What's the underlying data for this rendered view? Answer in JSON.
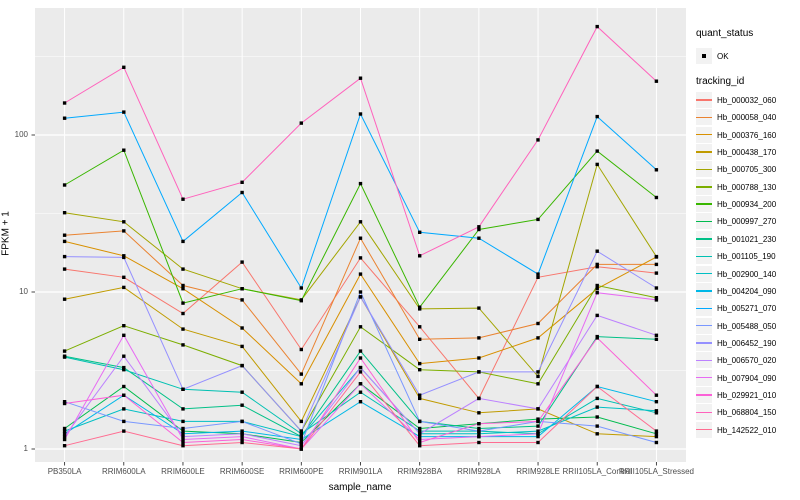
{
  "figure": {
    "xlabel": "sample_name",
    "ylabel": "FPKM + 1"
  },
  "legend": {
    "quant_status_title": "quant_status",
    "quant_ok_label": "OK",
    "tracking_id_title": "tracking_id"
  },
  "chart_data": {
    "type": "line",
    "title": "",
    "xlabel": "sample_name",
    "ylabel": "FPKM + 1",
    "y_scale": "log10",
    "y_ticks": [
      1,
      10,
      100
    ],
    "ylim": [
      0.95,
      560
    ],
    "grid": true,
    "legend_position": "right",
    "panel_color": "#EBEBEB",
    "point_color": "#000000",
    "point_legend_label": "OK",
    "categories": [
      "PB350LA",
      "RRIM600LA",
      "RRIM600LE",
      "RRIM600SE",
      "RRIM600PE",
      "RRIM901LA",
      "RRIM928BA",
      "RRIM928LA",
      "RRIM928LE",
      "RRII105LA_Control",
      "RRII105LA_Stressed"
    ],
    "series": [
      {
        "name": "Hb_000032_060",
        "color": "#F8766D",
        "values": [
          14,
          12.4,
          7.3,
          15.5,
          4.3,
          16.5,
          6.0,
          2.1,
          12.4,
          14.5,
          13.2
        ]
      },
      {
        "name": "Hb_000058_040",
        "color": "#EA8331",
        "values": [
          23,
          24.5,
          11,
          8.9,
          3.0,
          22,
          5.0,
          5.1,
          6.3,
          15,
          15
        ]
      },
      {
        "name": "Hb_000376_160",
        "color": "#D89000",
        "values": [
          21,
          17,
          10.5,
          5.9,
          2.6,
          13,
          3.5,
          3.8,
          5.1,
          10.5,
          16.7
        ]
      },
      {
        "name": "Hb_000438_170",
        "color": "#C09B00",
        "values": [
          9,
          10.7,
          5.8,
          4.5,
          1.5,
          9.3,
          2.1,
          1.7,
          1.8,
          1.25,
          1.2
        ]
      },
      {
        "name": "Hb_000705_300",
        "color": "#A3A500",
        "values": [
          32,
          28,
          14,
          10.5,
          8.9,
          28,
          7.8,
          7.9,
          2.9,
          65,
          16.8
        ]
      },
      {
        "name": "Hb_000788_130",
        "color": "#7CAE00",
        "values": [
          4.2,
          6.1,
          4.6,
          3.4,
          1.3,
          6.0,
          3.2,
          3.1,
          2.6,
          11,
          9.2
        ]
      },
      {
        "name": "Hb_000934_200",
        "color": "#39B600",
        "values": [
          48,
          80,
          8.5,
          10.5,
          8.8,
          49,
          8.0,
          25,
          29,
          79,
          40
        ]
      },
      {
        "name": "Hb_000997_270",
        "color": "#00BB4E",
        "values": [
          1.35,
          2.5,
          1.3,
          1.25,
          1.1,
          2.6,
          1.35,
          1.45,
          1.55,
          1.6,
          1.25
        ]
      },
      {
        "name": "Hb_001021_230",
        "color": "#00C087",
        "values": [
          3.9,
          3.3,
          1.8,
          1.9,
          1.2,
          4.2,
          1.5,
          1.35,
          1.4,
          5.2,
          5.0
        ]
      },
      {
        "name": "Hb_001105_190",
        "color": "#00C0B2",
        "values": [
          3.85,
          3.2,
          2.4,
          2.3,
          1.25,
          2.3,
          1.3,
          1.3,
          1.25,
          2.1,
          1.7
        ]
      },
      {
        "name": "Hb_002900_140",
        "color": "#00BFC4",
        "values": [
          1.3,
          1.8,
          1.5,
          1.5,
          1.2,
          3.3,
          1.25,
          1.25,
          1.3,
          1.85,
          1.75
        ]
      },
      {
        "name": "Hb_004204_090",
        "color": "#00B8E7",
        "values": [
          1.25,
          2.2,
          1.25,
          1.3,
          1.15,
          2.0,
          1.2,
          1.2,
          1.2,
          2.5,
          2.0
        ]
      },
      {
        "name": "Hb_005271_070",
        "color": "#00A9FF",
        "values": [
          128,
          140,
          21,
          43,
          10.6,
          136,
          24,
          22,
          13,
          131,
          60
        ]
      },
      {
        "name": "Hb_005488_050",
        "color": "#7997FF",
        "values": [
          2.0,
          1.5,
          1.35,
          1.5,
          1.08,
          10,
          1.5,
          1.3,
          1.5,
          1.4,
          1.1
        ]
      },
      {
        "name": "Hb_006452_190",
        "color": "#9590FF",
        "values": [
          16.8,
          16.6,
          2.4,
          3.4,
          1.3,
          9.3,
          2.2,
          3.1,
          3.1,
          18.2,
          10.6
        ]
      },
      {
        "name": "Hb_006570_020",
        "color": "#BC81FF",
        "values": [
          1.2,
          3.9,
          1.2,
          1.25,
          1.05,
          3.3,
          1.25,
          2.1,
          1.8,
          7.1,
          5.3
        ]
      },
      {
        "name": "Hb_007904_090",
        "color": "#E76BF3",
        "values": [
          1.15,
          5.3,
          1.15,
          1.2,
          1.0,
          2.6,
          1.15,
          1.2,
          1.25,
          9.9,
          8.9
        ]
      },
      {
        "name": "Hb_029921_010",
        "color": "#FB61D7",
        "values": [
          1.95,
          2.2,
          1.1,
          1.15,
          1.0,
          3.8,
          1.1,
          1.45,
          1.5,
          5.1,
          2.2
        ]
      },
      {
        "name": "Hb_068804_150",
        "color": "#FF62BC",
        "values": [
          160,
          270,
          39,
          50,
          119,
          230,
          17,
          26,
          93,
          490,
          220
        ]
      },
      {
        "name": "Hb_142522_010",
        "color": "#FF6C91",
        "values": [
          1.05,
          1.3,
          1.05,
          1.1,
          1.0,
          3.1,
          1.05,
          1.1,
          1.1,
          2.5,
          1.3
        ]
      }
    ]
  }
}
